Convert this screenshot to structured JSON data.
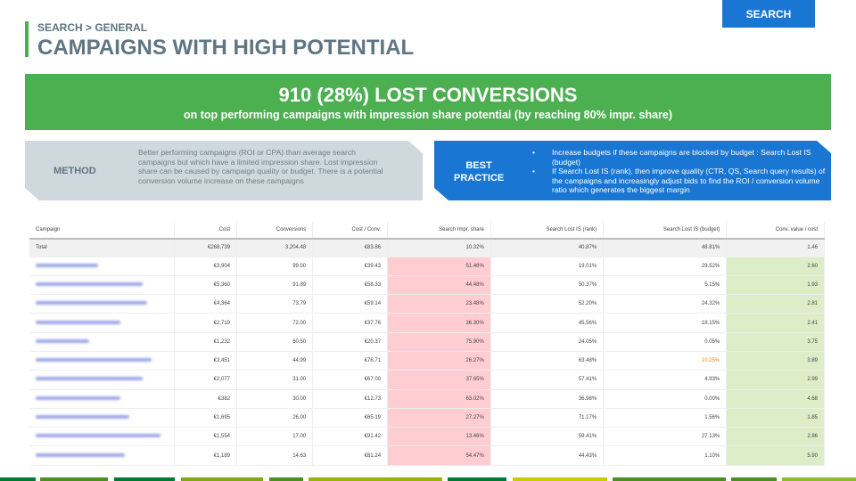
{
  "header": {
    "breadcrumb": "SEARCH > GENERAL",
    "title": "CAMPAIGNS WITH HIGH POTENTIAL",
    "search_button": "SEARCH"
  },
  "banner": {
    "headline": "910 (28%) LOST CONVERSIONS",
    "subline": "on top performing campaigns with impression share potential (by reaching 80% impr. share)"
  },
  "method": {
    "label": "METHOD",
    "text": "Better performing campaigns (ROI or CPA) than average search campaigns but which have a limited impression share. Lost impression share can be caused by campaign quality or budget. There is a potential conversion volume increase on these campaigns"
  },
  "best_practice": {
    "label": "BEST PRACTICE",
    "items": [
      "Increase budgets if these campaigns are blocked by budget : Search Lost IS (budget)",
      "If Search Lost IS (rank), then improve quality (CTR, QS, Search query results) of the campaigns and increasingly adjust bids to find the ROI / conversion volume ratio which generates the biggest margin"
    ]
  },
  "colors": {
    "accent_green": "#4caf50",
    "accent_blue": "#1976d2",
    "impr_share_low": "#ffcdd2",
    "conv_value_good": "#dcedc8"
  },
  "table": {
    "columns": [
      "Campaign",
      "Cost",
      "Conversions",
      "Cost / Conv.",
      "Search Impr. share",
      "Search Lost IS (rank)",
      "Search Lost IS (budget)",
      "Conv. value / cost"
    ],
    "total": [
      "Total",
      "€268,739",
      "3,204.48",
      "€83.86",
      "10.32%",
      "40.87%",
      "48.81%",
      "1.46"
    ],
    "rows": [
      [
        "€3,904",
        "99.00",
        "€39.43",
        "51.46%",
        "19.01%",
        "29.52%",
        "2.60"
      ],
      [
        "€5,360",
        "91.89",
        "€58.33",
        "44.48%",
        "50.37%",
        "5.15%",
        "1.93"
      ],
      [
        "€4,364",
        "73.79",
        "€59.14",
        "23.48%",
        "52.20%",
        "24.32%",
        "2.81"
      ],
      [
        "€2,719",
        "72.00",
        "€37.76",
        "36.30%",
        "45.56%",
        "18.15%",
        "2.41"
      ],
      [
        "€1,232",
        "60.50",
        "€20.37",
        "75.90%",
        "24.05%",
        "0.05%",
        "3.75"
      ],
      [
        "€3,451",
        "44.99",
        "€76.71",
        "26.27%",
        "63.48%",
        "10.25%",
        "3.89"
      ],
      [
        "€2,077",
        "31.00",
        "€67.00",
        "37.65%",
        "57.41%",
        "4.93%",
        "2.99"
      ],
      [
        "€382",
        "30.00",
        "€12.73",
        "63.02%",
        "36.98%",
        "0.00%",
        "4.68"
      ],
      [
        "€1,695",
        "26.00",
        "€65.19",
        "27.27%",
        "71.17%",
        "1.56%",
        "1.85"
      ],
      [
        "€1,554",
        "17.00",
        "€91.42",
        "13.46%",
        "59.41%",
        "27.13%",
        "2.86"
      ],
      [
        "€1,189",
        "14.63",
        "€81.24",
        "54.47%",
        "44.43%",
        "1.10%",
        "5.90"
      ]
    ]
  },
  "footer_stripe_colors": [
    "#007a33",
    "#4a8f25",
    "#007a33",
    "#7fa614",
    "#4a8f25",
    "#9ab30a",
    "#007a33",
    "#c8cc00",
    "#4a8f25",
    "#4a8f25",
    "#8cba30"
  ]
}
